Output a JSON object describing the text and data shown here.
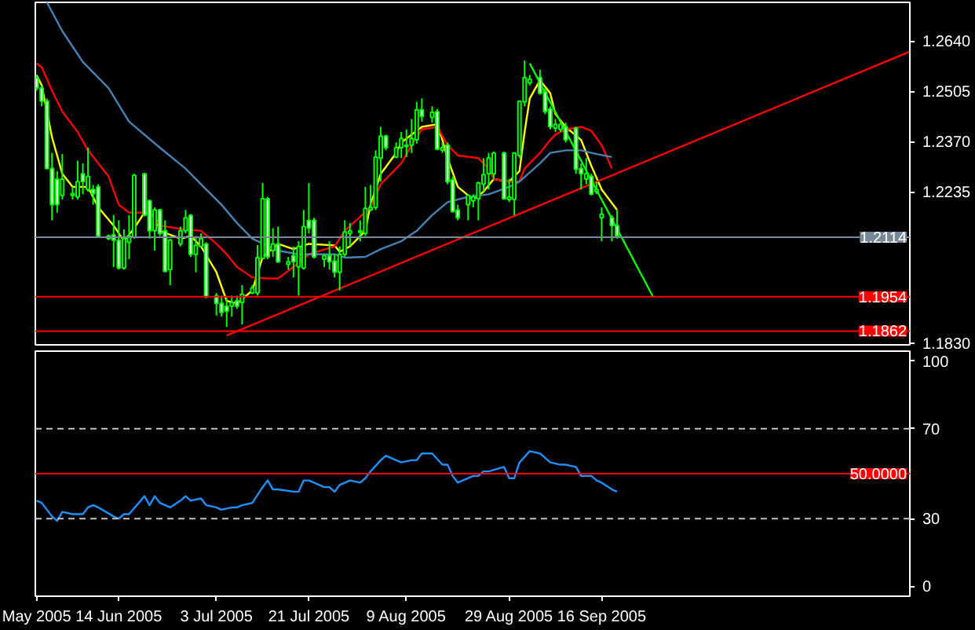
{
  "chart_data": [
    {
      "type": "candlestick",
      "x": [
        "2005-05-29",
        "2005-05-30",
        "2005-05-31",
        "2005-06-01",
        "2005-06-02",
        "2005-06-03",
        "2005-06-05",
        "2005-06-06",
        "2005-06-07",
        "2005-06-08",
        "2005-06-09",
        "2005-06-10",
        "2005-06-12",
        "2005-06-13",
        "2005-06-14",
        "2005-06-15",
        "2005-06-16",
        "2005-06-17",
        "2005-06-19",
        "2005-06-20",
        "2005-06-21",
        "2005-06-22",
        "2005-06-23",
        "2005-06-24",
        "2005-06-26",
        "2005-06-27",
        "2005-06-28",
        "2005-06-29",
        "2005-06-30",
        "2005-07-01",
        "2005-07-03",
        "2005-07-04",
        "2005-07-05",
        "2005-07-06",
        "2005-07-07",
        "2005-07-08",
        "2005-07-10",
        "2005-07-11",
        "2005-07-12",
        "2005-07-13",
        "2005-07-14",
        "2005-07-15",
        "2005-07-17",
        "2005-07-18",
        "2005-07-19",
        "2005-07-20",
        "2005-07-21",
        "2005-07-22",
        "2005-07-24",
        "2005-07-25",
        "2005-07-26",
        "2005-07-27",
        "2005-07-28",
        "2005-07-29",
        "2005-07-31",
        "2005-08-01",
        "2005-08-02",
        "2005-08-03",
        "2005-08-04",
        "2005-08-05",
        "2005-08-07",
        "2005-08-08",
        "2005-08-09",
        "2005-08-10",
        "2005-08-11",
        "2005-08-12",
        "2005-08-14",
        "2005-08-15",
        "2005-08-16",
        "2005-08-17",
        "2005-08-18",
        "2005-08-19",
        "2005-08-21",
        "2005-08-22",
        "2005-08-23",
        "2005-08-24",
        "2005-08-25",
        "2005-08-26",
        "2005-08-28",
        "2005-08-29",
        "2005-08-30",
        "2005-08-31",
        "2005-09-01",
        "2005-09-02",
        "2005-09-04",
        "2005-09-05",
        "2005-09-06",
        "2005-09-07",
        "2005-09-08",
        "2005-09-09",
        "2005-09-11",
        "2005-09-12",
        "2005-09-13",
        "2005-09-14",
        "2005-09-15",
        "2005-09-16",
        "2005-09-18",
        "2005-09-19"
      ],
      "ohlc": [
        [
          1.2542,
          1.2549,
          1.2507,
          1.2514
        ],
        [
          1.2514,
          1.2521,
          1.2465,
          1.2479
        ],
        [
          1.2479,
          1.2486,
          1.2296,
          1.2298
        ],
        [
          1.2298,
          1.234,
          1.2159,
          1.2201
        ],
        [
          1.227,
          1.2291,
          1.218,
          1.2201
        ],
        [
          1.2226,
          1.2337,
          1.2215,
          1.227
        ],
        [
          1.2226,
          1.2249,
          1.2215,
          1.2231
        ],
        [
          1.2222,
          1.2319,
          1.2215,
          1.2263
        ],
        [
          1.2284,
          1.2312,
          1.2229,
          1.2263
        ],
        [
          1.2242,
          1.2354,
          1.2236,
          1.2277
        ],
        [
          1.2242,
          1.2254,
          1.2201,
          1.2231
        ],
        [
          1.2249,
          1.2256,
          1.2114,
          1.2117
        ],
        [
          1.211,
          1.2121,
          1.2106,
          1.2117
        ],
        [
          1.212,
          1.2173,
          1.2034,
          1.2106
        ],
        [
          1.2106,
          1.2159,
          1.2027,
          1.2031
        ],
        [
          1.2031,
          1.2135,
          1.2027,
          1.211
        ],
        [
          1.21,
          1.2173,
          1.2055,
          1.2117
        ],
        [
          1.2114,
          1.2284,
          1.211,
          1.228
        ],
        [
          1.2284,
          1.2287,
          1.217,
          1.2173
        ],
        [
          1.2212,
          1.2215,
          1.211,
          1.2131
        ],
        [
          1.2131,
          1.2194,
          1.2078,
          1.2187
        ],
        [
          1.2187,
          1.219,
          1.2117,
          1.2124
        ],
        [
          1.2131,
          1.2159,
          1.202,
          1.2022
        ],
        [
          1.2027,
          1.211,
          1.1985,
          1.2106
        ],
        [
          1.2096,
          1.2142,
          1.2089,
          1.2131
        ],
        [
          1.2131,
          1.2187,
          1.2124,
          1.2166
        ],
        [
          1.2173,
          1.2176,
          1.2061,
          1.2068
        ],
        [
          1.2068,
          1.2117,
          1.202,
          1.2092
        ],
        [
          1.2089,
          1.2124,
          1.2087,
          1.211
        ],
        [
          1.2096,
          1.21,
          1.195,
          1.1954
        ],
        [
          1.1957,
          1.1964,
          1.1904,
          1.1936
        ],
        [
          1.1936,
          1.1957,
          1.1901,
          1.1912
        ],
        [
          1.1929,
          1.195,
          1.1873,
          1.1915
        ],
        [
          1.1929,
          1.1957,
          1.1901,
          1.1939
        ],
        [
          1.1943,
          1.1957,
          1.1922,
          1.1929
        ],
        [
          1.1939,
          1.1985,
          1.188,
          1.1961
        ],
        [
          1.1964,
          1.1985,
          1.1961,
          1.1978
        ],
        [
          1.1964,
          1.2092,
          1.1957,
          1.2059
        ],
        [
          1.2057,
          1.2259,
          1.2055,
          1.2217
        ],
        [
          1.2217,
          1.2222,
          1.2055,
          1.2061
        ],
        [
          1.2078,
          1.2138,
          1.2061,
          1.2096
        ],
        [
          1.2096,
          1.2142,
          1.2045,
          1.2048
        ],
        [
          1.2041,
          1.2061,
          1.2027,
          1.2048
        ],
        [
          1.2064,
          1.2089,
          1.2006,
          1.2048
        ],
        [
          1.2034,
          1.2103,
          1.1957,
          1.2089
        ],
        [
          1.2031,
          1.2187,
          1.2027,
          1.2142
        ],
        [
          1.2159,
          1.2259,
          1.2124,
          1.2138
        ],
        [
          1.2159,
          1.2166,
          1.2057,
          1.2061
        ],
        [
          1.2055,
          1.2068,
          1.2034,
          1.2064
        ],
        [
          1.2064,
          1.2103,
          1.2027,
          1.2048
        ],
        [
          1.205,
          1.2068,
          1.2006,
          1.202
        ],
        [
          1.202,
          1.2089,
          1.1971,
          1.2068
        ],
        [
          1.2068,
          1.2159,
          1.2061,
          1.2128
        ],
        [
          1.2124,
          1.2152,
          1.2089,
          1.2131
        ],
        [
          1.2127,
          1.2159,
          1.2103,
          1.2131
        ],
        [
          1.2124,
          1.2249,
          1.2117,
          1.2191
        ],
        [
          1.2187,
          1.2254,
          1.2184,
          1.2194
        ],
        [
          1.2194,
          1.2347,
          1.2187,
          1.2329
        ],
        [
          1.2326,
          1.241,
          1.2263,
          1.2385
        ],
        [
          1.2385,
          1.2389,
          1.2347,
          1.2354
        ],
        [
          1.2329,
          1.2368,
          1.2326,
          1.2354
        ],
        [
          1.2354,
          1.2396,
          1.2326,
          1.2379
        ],
        [
          1.2357,
          1.2403,
          1.2329,
          1.2361
        ],
        [
          1.2361,
          1.2431,
          1.234,
          1.2379
        ],
        [
          1.2375,
          1.2477,
          1.2365,
          1.2456
        ],
        [
          1.2456,
          1.2486,
          1.2424,
          1.2438
        ],
        [
          1.2435,
          1.2465,
          1.2421,
          1.2449
        ],
        [
          1.2451,
          1.2458,
          1.2347,
          1.235
        ],
        [
          1.2347,
          1.2368,
          1.234,
          1.2354
        ],
        [
          1.2361,
          1.2368,
          1.2256,
          1.2263
        ],
        [
          1.2268,
          1.2277,
          1.218,
          1.2183
        ],
        [
          1.2187,
          1.2201,
          1.2159,
          1.2166
        ],
        [
          1.2201,
          1.2229,
          1.2159,
          1.2226
        ],
        [
          1.2212,
          1.2229,
          1.2194,
          1.2222
        ],
        [
          1.2217,
          1.2263,
          1.2159,
          1.2259
        ],
        [
          1.2256,
          1.2326,
          1.2236,
          1.2282
        ],
        [
          1.2284,
          1.234,
          1.2242,
          1.2326
        ],
        [
          1.2284,
          1.2343,
          1.227,
          1.234
        ],
        [
          1.234,
          1.2343,
          1.2215,
          1.2217
        ],
        [
          1.2215,
          1.227,
          1.2208,
          1.2222
        ],
        [
          1.2215,
          1.234,
          1.2173,
          1.234
        ],
        [
          1.2333,
          1.2479,
          1.2326,
          1.2479
        ],
        [
          1.2477,
          1.2588,
          1.2465,
          1.2542
        ],
        [
          1.2528,
          1.2549,
          1.2521,
          1.2538
        ],
        [
          1.2542,
          1.2563,
          1.2496,
          1.25
        ],
        [
          1.2504,
          1.2514,
          1.2444,
          1.2451
        ],
        [
          1.2458,
          1.2465,
          1.2403,
          1.241
        ],
        [
          1.2406,
          1.2431,
          1.2396,
          1.2417
        ],
        [
          1.2403,
          1.2424,
          1.2396,
          1.2417
        ],
        [
          1.241,
          1.2421,
          1.2368,
          1.2375
        ],
        [
          1.2407,
          1.241,
          1.2284,
          1.2296
        ],
        [
          1.2298,
          1.2312,
          1.2242,
          1.2284
        ],
        [
          1.227,
          1.2326,
          1.2256,
          1.2284
        ],
        [
          1.2277,
          1.2284,
          1.2226,
          1.2229
        ],
        [
          1.2236,
          1.2263,
          1.2229,
          1.2242
        ],
        [
          1.2166,
          1.2194,
          1.2103,
          1.2176
        ],
        [
          1.2166,
          1.2173,
          1.2103,
          1.2145
        ],
        [
          1.2145,
          1.2187,
          1.211,
          1.2117
        ]
      ],
      "series": [
        {
          "type": "line",
          "color": "#ffff00",
          "x": [
            "2005-05-29",
            "2005-05-30",
            "2005-06-01",
            "2005-06-03",
            "2005-06-05",
            "2005-06-08",
            "2005-06-10",
            "2005-06-13",
            "2005-06-15",
            "2005-06-17",
            "2005-06-19",
            "2005-06-21",
            "2005-06-22",
            "2005-06-26",
            "2005-06-28",
            "2005-06-30",
            "2005-07-03",
            "2005-07-05",
            "2005-07-07",
            "2005-07-10",
            "2005-07-12",
            "2005-07-15",
            "2005-07-18",
            "2005-07-21",
            "2005-07-26",
            "2005-07-27",
            "2005-07-29",
            "2005-08-01",
            "2005-08-02",
            "2005-08-04",
            "2005-08-07",
            "2005-08-08",
            "2005-08-10",
            "2005-08-12",
            "2005-08-15",
            "2005-08-16",
            "2005-08-17",
            "2005-08-19",
            "2005-08-22",
            "2005-08-24",
            "2005-08-26",
            "2005-08-29",
            "2005-08-31",
            "2005-09-01",
            "2005-09-02",
            "2005-09-04",
            "2005-09-06",
            "2005-09-07",
            "2005-09-09",
            "2005-09-12",
            "2005-09-14",
            "2005-09-16",
            "2005-09-19"
          ],
          "values": [
            1.2549,
            1.2521,
            1.2382,
            1.2284,
            1.2249,
            1.2249,
            1.2194,
            1.2145,
            1.2103,
            1.2138,
            1.218,
            1.2173,
            1.2131,
            1.211,
            1.2117,
            1.2089,
            1.202,
            1.1943,
            1.1936,
            1.1971,
            1.2061,
            1.2096,
            1.2082,
            1.2096,
            1.2092,
            1.2075,
            1.2089,
            1.2131,
            1.2201,
            1.2284,
            1.234,
            1.2368,
            1.2389,
            1.241,
            1.2417,
            1.2375,
            1.2326,
            1.2249,
            1.2215,
            1.2236,
            1.227,
            1.2263,
            1.2291,
            1.2396,
            1.2486,
            1.2535,
            1.25,
            1.2444,
            1.241,
            1.2375,
            1.2305,
            1.2242,
            1.2187
          ]
        },
        {
          "type": "line",
          "color": "#ff0000",
          "x": [
            "2005-05-29",
            "2005-05-30",
            "2005-06-01",
            "2005-06-03",
            "2005-06-06",
            "2005-06-08",
            "2005-06-12",
            "2005-06-14",
            "2005-06-16",
            "2005-06-20",
            "2005-06-22",
            "2005-06-27",
            "2005-06-30",
            "2005-07-03",
            "2005-07-05",
            "2005-07-07",
            "2005-07-10",
            "2005-07-13",
            "2005-07-15",
            "2005-07-18",
            "2005-07-21",
            "2005-07-26",
            "2005-07-28",
            "2005-08-02",
            "2005-08-04",
            "2005-08-08",
            "2005-08-10",
            "2005-08-12",
            "2005-08-15",
            "2005-08-17",
            "2005-08-19",
            "2005-08-23",
            "2005-08-25",
            "2005-08-26",
            "2005-08-29",
            "2005-08-31",
            "2005-09-01",
            "2005-09-04",
            "2005-09-06",
            "2005-09-07",
            "2005-09-09",
            "2005-09-12",
            "2005-09-14",
            "2005-09-16",
            "2005-09-18"
          ],
          "values": [
            1.258,
            1.257,
            1.2507,
            1.2451,
            1.2396,
            1.2347,
            1.2277,
            1.2201,
            1.218,
            1.218,
            1.2145,
            1.2134,
            1.2131,
            1.2096,
            1.2068,
            1.2034,
            1.2006,
            1.2003,
            1.2003,
            1.2034,
            1.2068,
            1.2089,
            1.2131,
            1.2194,
            1.2256,
            1.2312,
            1.2361,
            1.2403,
            1.241,
            1.2361,
            1.2333,
            1.2326,
            1.2298,
            1.227,
            1.2263,
            1.2263,
            1.2298,
            1.234,
            1.2375,
            1.2389,
            1.2403,
            1.241,
            1.2399,
            1.2361,
            1.2298
          ]
        },
        {
          "type": "line",
          "color": "#4682b4",
          "x": [
            "2005-05-31",
            "2005-06-03",
            "2005-06-07",
            "2005-06-12",
            "2005-06-16",
            "2005-06-22",
            "2005-06-27",
            "2005-07-01",
            "2005-07-04",
            "2005-07-07",
            "2005-07-10",
            "2005-07-15",
            "2005-07-19",
            "2005-07-26",
            "2005-07-28",
            "2005-08-01",
            "2005-08-04",
            "2005-08-08",
            "2005-08-11",
            "2005-08-14",
            "2005-08-17",
            "2005-08-21",
            "2005-08-25",
            "2005-08-29",
            "2005-08-31",
            "2005-09-04",
            "2005-09-06",
            "2005-09-09",
            "2005-09-12",
            "2005-09-15",
            "2005-09-18"
          ],
          "values": [
            1.2744,
            1.2667,
            1.2584,
            1.2514,
            1.2424,
            1.2354,
            1.2298,
            1.2242,
            1.2201,
            1.2152,
            1.211,
            1.2078,
            1.2068,
            1.2068,
            1.2059,
            1.2061,
            1.2082,
            1.2103,
            1.2131,
            1.2173,
            1.2208,
            1.2222,
            1.2229,
            1.2249,
            1.2263,
            1.2312,
            1.234,
            1.2347,
            1.2347,
            1.2337,
            1.2329
          ]
        },
        {
          "type": "line",
          "color": "#ff0000",
          "x": [
            "2005-07-05",
            "2005-11-15"
          ],
          "values": [
            1.185,
            1.2612
          ]
        },
        {
          "type": "line",
          "color": "#00ff00",
          "x": [
            "2005-09-02",
            "2005-09-26"
          ],
          "values": [
            1.258,
            1.1954
          ]
        }
      ],
      "xlim": [
        "2005-05-28T18:00",
        "2005-11-15"
      ],
      "ylim": [
        1.1825,
        1.2744
      ],
      "yticks": [
        {
          "value": 1.264,
          "label": "1.2640"
        },
        1.2505,
        {
          "value": 1.237,
          "label": "1.2370"
        },
        1.2235,
        {
          "value": 1.183,
          "label": "1.1830"
        }
      ],
      "ref_lines": [
        {
          "axis": "y",
          "value": 1.2114,
          "label": "1.2114",
          "color": "#778899"
        },
        {
          "axis": "y",
          "value": 1.1954,
          "label": "1.1954",
          "color": "#ff0000"
        },
        {
          "axis": "y",
          "value": 1.1862,
          "label": "1.1862",
          "color": "#ff0000"
        }
      ],
      "tick_labels": "y"
    },
    {
      "type": "line",
      "x": [
        "2005-05-29",
        "2005-05-30",
        "2005-06-01",
        "2005-06-02",
        "2005-06-03",
        "2005-06-05",
        "2005-06-07",
        "2005-06-08",
        "2005-06-09",
        "2005-06-10",
        "2005-06-13",
        "2005-06-14",
        "2005-06-15",
        "2005-06-16",
        "2005-06-19",
        "2005-06-20",
        "2005-06-21",
        "2005-06-22",
        "2005-06-24",
        "2005-06-26",
        "2005-06-27",
        "2005-06-28",
        "2005-06-30",
        "2005-07-01",
        "2005-07-03",
        "2005-07-04",
        "2005-07-06",
        "2005-07-07",
        "2005-07-08",
        "2005-07-10",
        "2005-07-12",
        "2005-07-13",
        "2005-07-14",
        "2005-07-15",
        "2005-07-18",
        "2005-07-19",
        "2005-07-20",
        "2005-07-21",
        "2005-07-24",
        "2005-07-25",
        "2005-07-26",
        "2005-07-27",
        "2005-07-29",
        "2005-07-31",
        "2005-08-01",
        "2005-08-02",
        "2005-08-04",
        "2005-08-05",
        "2005-08-07",
        "2005-08-08",
        "2005-08-10",
        "2005-08-11",
        "2005-08-12",
        "2005-08-14",
        "2005-08-16",
        "2005-08-17",
        "2005-08-18",
        "2005-08-19",
        "2005-08-22",
        "2005-08-23",
        "2005-08-24",
        "2005-08-25",
        "2005-08-28",
        "2005-08-29",
        "2005-08-30",
        "2005-08-31",
        "2005-09-02",
        "2005-09-04",
        "2005-09-05",
        "2005-09-06",
        "2005-09-08",
        "2005-09-09",
        "2005-09-11",
        "2005-09-12",
        "2005-09-14",
        "2005-09-15",
        "2005-09-16",
        "2005-09-18",
        "2005-09-19"
      ],
      "series": [
        {
          "color": "#1e90ff",
          "values": [
            38,
            37,
            31,
            29,
            33,
            32,
            32,
            35,
            36,
            35,
            31,
            30,
            32,
            32,
            40,
            36,
            40,
            37,
            35,
            38,
            40,
            38,
            39,
            36,
            35,
            34,
            35,
            35,
            36,
            37,
            44,
            47,
            43,
            43,
            42,
            42,
            47,
            47,
            44,
            44,
            42,
            45,
            47,
            46,
            48,
            51,
            56,
            58,
            56,
            55,
            56,
            56,
            59,
            59,
            54,
            54,
            49,
            46,
            49,
            49,
            51,
            51,
            53,
            48,
            48,
            55,
            60,
            59,
            57,
            55,
            54,
            54,
            53,
            49,
            49,
            47,
            46,
            43,
            42
          ]
        }
      ],
      "xlim": [
        "2005-05-28T18:00",
        "2005-11-15"
      ],
      "xticks": [
        {
          "value": "2005-05-29",
          "label": "May 2005"
        },
        {
          "value": "2005-06-14",
          "label": "14 Jun 2005"
        },
        {
          "value": "2005-07-03",
          "label": "3 Jul 2005"
        },
        {
          "value": "2005-07-21",
          "label": "21 Jul 2005"
        },
        {
          "value": "2005-08-09",
          "label": "9 Aug 2005"
        },
        {
          "value": "2005-08-29",
          "label": "29 Aug 2005"
        },
        {
          "value": "2005-09-16",
          "label": "16 Sep 2005"
        }
      ],
      "ylim": [
        -4.5,
        104.5
      ],
      "yticks": [
        0,
        30,
        70,
        100
      ],
      "ref_lines": [
        {
          "axis": "y",
          "value": 30,
          "color": "#c0c0c0",
          "line_style": "dashed"
        },
        {
          "axis": "y",
          "value": 70,
          "color": "#c0c0c0",
          "line_style": "dashed"
        },
        {
          "axis": "y",
          "value": 50,
          "label": "50.0000",
          "color": "#ff0000"
        }
      ]
    }
  ]
}
